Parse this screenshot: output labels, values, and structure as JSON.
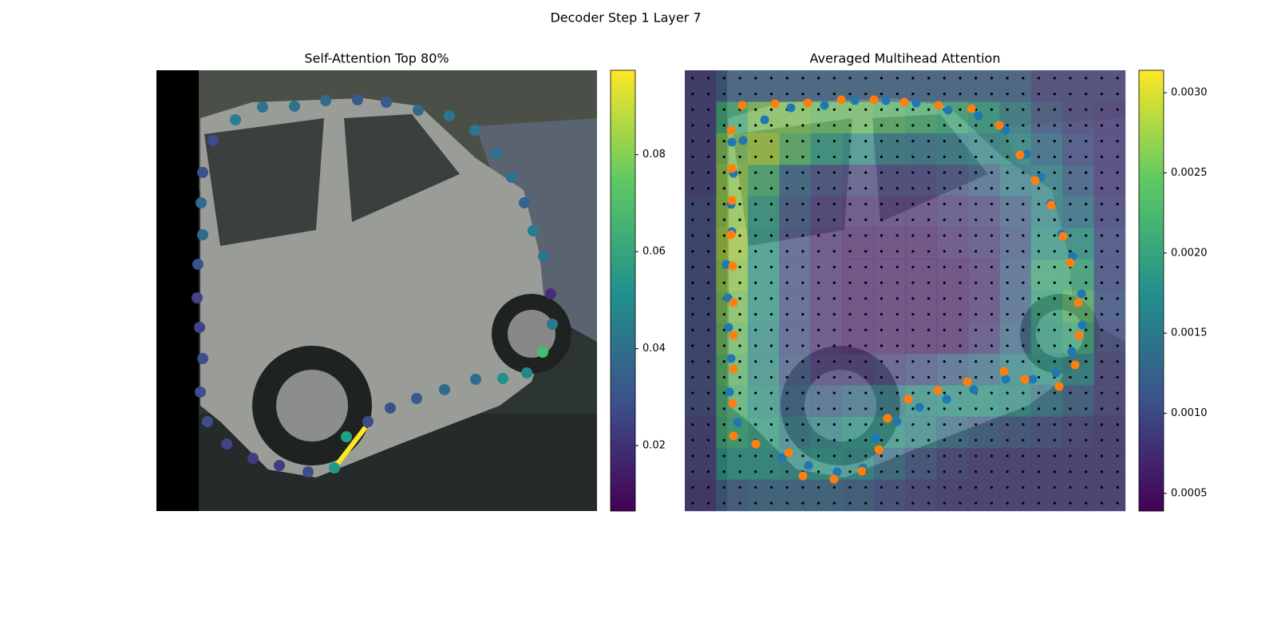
{
  "title": "Decoder Step 1 Layer 7",
  "chart_data": [
    {
      "type": "scatter",
      "title": "Self-Attention Top 80%",
      "xlim": [
        0,
        552
      ],
      "ylim": [
        552,
        0
      ],
      "x": [
        99,
        133,
        173,
        212,
        252,
        288,
        328,
        367,
        399,
        426,
        445,
        461,
        472,
        485,
        494,
        496,
        484,
        464,
        434,
        400,
        361,
        326,
        293,
        265,
        238,
        223,
        190,
        154,
        121,
        88,
        64,
        55,
        58,
        54,
        51,
        52,
        58,
        56,
        58,
        71
      ],
      "y": [
        62,
        46,
        45,
        38,
        37,
        40,
        50,
        57,
        75,
        104,
        134,
        166,
        201,
        233,
        280,
        318,
        353,
        379,
        386,
        387,
        400,
        411,
        423,
        440,
        459,
        498,
        503,
        495,
        486,
        468,
        440,
        403,
        361,
        322,
        285,
        243,
        206,
        166,
        128,
        88
      ],
      "values": [
        0.045,
        0.042,
        0.04,
        0.038,
        0.033,
        0.033,
        0.038,
        0.042,
        0.042,
        0.042,
        0.042,
        0.035,
        0.045,
        0.042,
        0.018,
        0.043,
        0.07,
        0.048,
        0.052,
        0.038,
        0.038,
        0.033,
        0.03,
        0.028,
        0.058,
        0.055,
        0.028,
        0.022,
        0.022,
        0.025,
        0.028,
        0.028,
        0.028,
        0.025,
        0.025,
        0.03,
        0.038,
        0.038,
        0.03,
        0.028
      ],
      "colorbar": {
        "lim": [
          0.0065,
          0.0974
        ],
        "ticks": [
          0.02,
          0.04,
          0.06,
          0.08
        ]
      }
    },
    {
      "type": "heatmap",
      "title": "Averaged Multihead Attention",
      "xlim": [
        0,
        552
      ],
      "ylim": [
        552,
        0
      ],
      "z": [
        [
          0.0009,
          0.0012,
          0.0012,
          0.0012,
          0.0012,
          0.0012,
          0.0012,
          0.0012,
          0.0012,
          0.0012,
          0.0012,
          0.0009,
          0.0009,
          0.0009
        ],
        [
          0.0009,
          0.0022,
          0.0026,
          0.0026,
          0.0025,
          0.0025,
          0.0024,
          0.0023,
          0.0022,
          0.002,
          0.0016,
          0.0011,
          0.0009,
          0.0008
        ],
        [
          0.0009,
          0.0026,
          0.0028,
          0.0024,
          0.002,
          0.0018,
          0.0016,
          0.0015,
          0.0016,
          0.0017,
          0.0018,
          0.0014,
          0.001,
          0.0008
        ],
        [
          0.0009,
          0.0027,
          0.0023,
          0.0013,
          0.001,
          0.0009,
          0.0009,
          0.0009,
          0.001,
          0.0012,
          0.0016,
          0.0017,
          0.0012,
          0.0008
        ],
        [
          0.001,
          0.0027,
          0.002,
          0.0011,
          0.0008,
          0.0007,
          0.0007,
          0.0007,
          0.0008,
          0.0009,
          0.0012,
          0.0017,
          0.0015,
          0.0009
        ],
        [
          0.001,
          0.0028,
          0.0019,
          0.001,
          0.0007,
          0.0006,
          0.0006,
          0.0006,
          0.0007,
          0.0008,
          0.0011,
          0.0019,
          0.0019,
          0.001
        ],
        [
          0.001,
          0.0027,
          0.0019,
          0.001,
          0.0007,
          0.0006,
          0.0006,
          0.0006,
          0.0006,
          0.0007,
          0.0012,
          0.0022,
          0.0022,
          0.001
        ],
        [
          0.001,
          0.0026,
          0.0019,
          0.001,
          0.0007,
          0.0006,
          0.0006,
          0.0006,
          0.0006,
          0.0007,
          0.0012,
          0.0021,
          0.0024,
          0.0011
        ],
        [
          0.001,
          0.0025,
          0.0018,
          0.001,
          0.0007,
          0.0006,
          0.0006,
          0.0006,
          0.0006,
          0.0008,
          0.0013,
          0.002,
          0.0022,
          0.001
        ],
        [
          0.001,
          0.0024,
          0.0018,
          0.0011,
          0.0008,
          0.0008,
          0.0009,
          0.001,
          0.0012,
          0.0014,
          0.0017,
          0.0019,
          0.0017,
          0.0009
        ],
        [
          0.001,
          0.0023,
          0.0019,
          0.0013,
          0.0012,
          0.0014,
          0.0016,
          0.0018,
          0.0019,
          0.0019,
          0.0018,
          0.0015,
          0.0012,
          0.0009
        ],
        [
          0.0009,
          0.0022,
          0.002,
          0.0016,
          0.0017,
          0.0019,
          0.0019,
          0.0017,
          0.0014,
          0.0012,
          0.0011,
          0.001,
          0.0009,
          0.0008
        ],
        [
          0.0009,
          0.0019,
          0.0019,
          0.0018,
          0.0019,
          0.0018,
          0.0014,
          0.0011,
          0.0009,
          0.0008,
          0.0008,
          0.0008,
          0.0008,
          0.0008
        ],
        [
          0.0008,
          0.0012,
          0.0013,
          0.0013,
          0.0013,
          0.0012,
          0.001,
          0.0009,
          0.0008,
          0.0008,
          0.0008,
          0.0008,
          0.0008,
          0.0008
        ]
      ],
      "series": [
        {
          "color": "#1f77b4",
          "x": [
            73,
            100,
            133,
            175,
            213,
            252,
            290,
            330,
            368,
            402,
            428,
            446,
            458,
            472,
            486,
            497,
            498,
            485,
            465,
            436,
            402,
            362,
            328,
            294,
            266,
            239,
            223,
            191,
            155,
            122,
            66,
            56,
            58,
            55,
            54,
            52,
            59,
            58,
            61,
            59
          ],
          "y": [
            88,
            62,
            47,
            44,
            38,
            38,
            41,
            50,
            57,
            75,
            105,
            134,
            167,
            205,
            233,
            280,
            319,
            352,
            379,
            387,
            387,
            400,
            412,
            422,
            440,
            460,
            498,
            503,
            495,
            485,
            441,
            403,
            361,
            322,
            285,
            243,
            202,
            168,
            129,
            90
          ]
        },
        {
          "color": "#ff7f0e",
          "x": [
            72,
            113,
            154,
            196,
            237,
            275,
            318,
            359,
            394,
            420,
            439,
            459,
            474,
            483,
            493,
            494,
            489,
            469,
            426,
            400,
            354,
            317,
            280,
            254,
            243,
            222,
            187,
            148,
            130,
            89,
            61,
            60,
            61,
            61,
            61,
            60,
            58,
            59,
            59,
            58
          ],
          "y": [
            44,
            42,
            41,
            37,
            37,
            40,
            44,
            48,
            69,
            106,
            138,
            169,
            208,
            241,
            291,
            332,
            369,
            396,
            387,
            377,
            390,
            401,
            412,
            436,
            475,
            502,
            512,
            508,
            479,
            468,
            458,
            417,
            374,
            332,
            291,
            245,
            206,
            163,
            123,
            75
          ]
        }
      ],
      "colorbar": {
        "lim": [
          0.00039,
          0.00314
        ],
        "ticks": [
          0.0005,
          {
            "value": 0.001,
            "label": "0.0010"
          },
          0.0015,
          {
            "value": 0.002,
            "label": "0.0020"
          },
          0.0025,
          {
            "value": 0.003,
            "label": "0.0030"
          }
        ]
      }
    }
  ]
}
